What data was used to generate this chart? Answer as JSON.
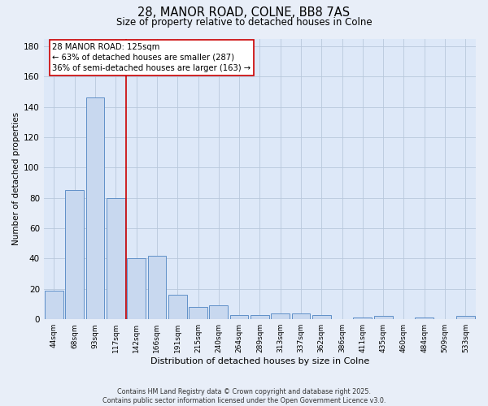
{
  "title_line1": "28, MANOR ROAD, COLNE, BB8 7AS",
  "title_line2": "Size of property relative to detached houses in Colne",
  "xlabel": "Distribution of detached houses by size in Colne",
  "ylabel": "Number of detached properties",
  "bar_color": "#c8d8ef",
  "bar_edge_color": "#6090c8",
  "background_color": "#dde8f8",
  "grid_color": "#c8d4e8",
  "fig_color": "#e8eef8",
  "categories": [
    "44sqm",
    "68sqm",
    "93sqm",
    "117sqm",
    "142sqm",
    "166sqm",
    "191sqm",
    "215sqm",
    "240sqm",
    "264sqm",
    "289sqm",
    "313sqm",
    "337sqm",
    "362sqm",
    "386sqm",
    "411sqm",
    "435sqm",
    "460sqm",
    "484sqm",
    "509sqm",
    "533sqm"
  ],
  "values": [
    19,
    85,
    146,
    80,
    40,
    42,
    16,
    8,
    9,
    3,
    3,
    4,
    4,
    3,
    0,
    1,
    2,
    0,
    1,
    0,
    2
  ],
  "ylim": [
    0,
    185
  ],
  "yticks": [
    0,
    20,
    40,
    60,
    80,
    100,
    120,
    140,
    160,
    180
  ],
  "property_line_x": 3.5,
  "annotation_text_line1": "28 MANOR ROAD: 125sqm",
  "annotation_text_line2": "← 63% of detached houses are smaller (287)",
  "annotation_text_line3": "36% of semi-detached houses are larger (163) →",
  "annotation_box_color": "#ffffff",
  "annotation_border_color": "#cc0000",
  "red_line_color": "#cc0000",
  "footer_line1": "Contains HM Land Registry data © Crown copyright and database right 2025.",
  "footer_line2": "Contains public sector information licensed under the Open Government Licence v3.0."
}
